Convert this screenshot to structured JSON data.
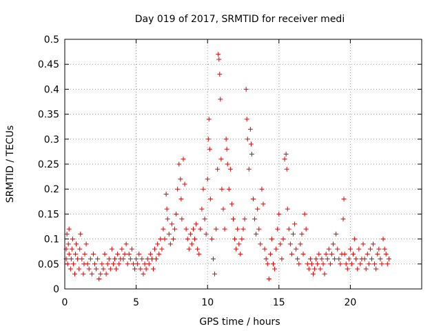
{
  "chart_data": {
    "type": "scatter",
    "title": "Day 019 of 2017, SRMTID for receiver medi",
    "xlabel": "GPS time / hours",
    "ylabel": "SRMTID / TECUs",
    "xlim": [
      0,
      25
    ],
    "ylim": [
      0,
      0.5
    ],
    "xticks": [
      0,
      5,
      10,
      15,
      20
    ],
    "xtick_labels": [
      "0",
      "5",
      "10",
      "15",
      "20"
    ],
    "yticks": [
      0,
      0.05,
      0.1,
      0.15,
      0.2,
      0.25,
      0.3,
      0.35,
      0.4,
      0.45,
      0.5
    ],
    "ytick_labels": [
      "0",
      "0.05",
      "0.1",
      "0.15",
      "0.2",
      "0.25",
      "0.3",
      "0.35",
      "0.4",
      "0.45",
      "0.5"
    ],
    "grid": true,
    "marker": "+",
    "color": "#e00000",
    "series": [
      {
        "name": "SRMTID",
        "points": [
          [
            0.1,
            0.06
          ],
          [
            0.1,
            0.08
          ],
          [
            0.15,
            0.11
          ],
          [
            0.2,
            0.05
          ],
          [
            0.25,
            0.09
          ],
          [
            0.3,
            0.07
          ],
          [
            0.3,
            0.12
          ],
          [
            0.4,
            0.04
          ],
          [
            0.45,
            0.06
          ],
          [
            0.5,
            0.08
          ],
          [
            0.55,
            0.1
          ],
          [
            0.6,
            0.05
          ],
          [
            0.7,
            0.03
          ],
          [
            0.75,
            0.07
          ],
          [
            0.8,
            0.09
          ],
          [
            0.9,
            0.06
          ],
          [
            1.0,
            0.04
          ],
          [
            1.05,
            0.08
          ],
          [
            1.1,
            0.11
          ],
          [
            1.2,
            0.06
          ],
          [
            1.3,
            0.03
          ],
          [
            1.35,
            0.05
          ],
          [
            1.4,
            0.07
          ],
          [
            1.5,
            0.09
          ],
          [
            1.6,
            0.05
          ],
          [
            1.7,
            0.04
          ],
          [
            1.8,
            0.06
          ],
          [
            1.9,
            0.03
          ],
          [
            2.0,
            0.07
          ],
          [
            2.1,
            0.05
          ],
          [
            2.2,
            0.04
          ],
          [
            2.3,
            0.06
          ],
          [
            2.4,
            0.02
          ],
          [
            2.5,
            0.03
          ],
          [
            2.6,
            0.05
          ],
          [
            2.7,
            0.04
          ],
          [
            2.8,
            0.07
          ],
          [
            2.9,
            0.03
          ],
          [
            3.0,
            0.05
          ],
          [
            3.1,
            0.06
          ],
          [
            3.2,
            0.04
          ],
          [
            3.3,
            0.08
          ],
          [
            3.4,
            0.05
          ],
          [
            3.5,
            0.06
          ],
          [
            3.6,
            0.04
          ],
          [
            3.7,
            0.07
          ],
          [
            3.8,
            0.05
          ],
          [
            3.9,
            0.06
          ],
          [
            4.0,
            0.08
          ],
          [
            4.1,
            0.06
          ],
          [
            4.2,
            0.07
          ],
          [
            4.3,
            0.09
          ],
          [
            4.4,
            0.05
          ],
          [
            4.5,
            0.07
          ],
          [
            4.6,
            0.06
          ],
          [
            4.7,
            0.08
          ],
          [
            4.8,
            0.05
          ],
          [
            4.9,
            0.04
          ],
          [
            5.0,
            0.06
          ],
          [
            5.1,
            0.05
          ],
          [
            5.2,
            0.07
          ],
          [
            5.3,
            0.04
          ],
          [
            5.4,
            0.06
          ],
          [
            5.5,
            0.03
          ],
          [
            5.6,
            0.05
          ],
          [
            5.7,
            0.04
          ],
          [
            5.8,
            0.06
          ],
          [
            5.9,
            0.05
          ],
          [
            6.0,
            0.07
          ],
          [
            6.1,
            0.06
          ],
          [
            6.2,
            0.04
          ],
          [
            6.3,
            0.08
          ],
          [
            6.4,
            0.06
          ],
          [
            6.5,
            0.09
          ],
          [
            6.6,
            0.07
          ],
          [
            6.7,
            0.1
          ],
          [
            6.8,
            0.08
          ],
          [
            6.9,
            0.12
          ],
          [
            7.0,
            0.1
          ],
          [
            7.1,
            0.19
          ],
          [
            7.15,
            0.16
          ],
          [
            7.2,
            0.14
          ],
          [
            7.3,
            0.11
          ],
          [
            7.4,
            0.09
          ],
          [
            7.5,
            0.13
          ],
          [
            7.6,
            0.1
          ],
          [
            7.7,
            0.12
          ],
          [
            7.8,
            0.15
          ],
          [
            7.9,
            0.2
          ],
          [
            8.0,
            0.25
          ],
          [
            8.1,
            0.22
          ],
          [
            8.15,
            0.18
          ],
          [
            8.2,
            0.14
          ],
          [
            8.3,
            0.26
          ],
          [
            8.4,
            0.21
          ],
          [
            8.5,
            0.12
          ],
          [
            8.6,
            0.1
          ],
          [
            8.7,
            0.08
          ],
          [
            8.8,
            0.11
          ],
          [
            8.9,
            0.09
          ],
          [
            9.0,
            0.12
          ],
          [
            9.1,
            0.1
          ],
          [
            9.2,
            0.13
          ],
          [
            9.3,
            0.08
          ],
          [
            9.4,
            0.07
          ],
          [
            9.5,
            0.12
          ],
          [
            9.6,
            0.16
          ],
          [
            9.7,
            0.2
          ],
          [
            9.8,
            0.14
          ],
          [
            9.9,
            0.11
          ],
          [
            10.0,
            0.22
          ],
          [
            10.05,
            0.3
          ],
          [
            10.1,
            0.34
          ],
          [
            10.15,
            0.28
          ],
          [
            10.2,
            0.18
          ],
          [
            10.3,
            0.1
          ],
          [
            10.4,
            0.06
          ],
          [
            10.5,
            0.03
          ],
          [
            10.6,
            0.12
          ],
          [
            10.7,
            0.24
          ],
          [
            10.75,
            0.47
          ],
          [
            10.8,
            0.46
          ],
          [
            10.85,
            0.43
          ],
          [
            10.9,
            0.38
          ],
          [
            10.95,
            0.26
          ],
          [
            11.0,
            0.2
          ],
          [
            11.1,
            0.16
          ],
          [
            11.2,
            0.12
          ],
          [
            11.3,
            0.3
          ],
          [
            11.35,
            0.28
          ],
          [
            11.4,
            0.25
          ],
          [
            11.5,
            0.2
          ],
          [
            11.6,
            0.24
          ],
          [
            11.7,
            0.17
          ],
          [
            11.8,
            0.14
          ],
          [
            11.9,
            0.1
          ],
          [
            12.0,
            0.08
          ],
          [
            12.1,
            0.12
          ],
          [
            12.2,
            0.09
          ],
          [
            12.3,
            0.07
          ],
          [
            12.4,
            0.1
          ],
          [
            12.5,
            0.12
          ],
          [
            12.6,
            0.14
          ],
          [
            12.7,
            0.4
          ],
          [
            12.75,
            0.34
          ],
          [
            12.8,
            0.3
          ],
          [
            12.9,
            0.24
          ],
          [
            13.0,
            0.32
          ],
          [
            13.05,
            0.29
          ],
          [
            13.1,
            0.27
          ],
          [
            13.2,
            0.18
          ],
          [
            13.3,
            0.14
          ],
          [
            13.4,
            0.11
          ],
          [
            13.5,
            0.16
          ],
          [
            13.6,
            0.12
          ],
          [
            13.7,
            0.09
          ],
          [
            13.8,
            0.2
          ],
          [
            13.9,
            0.17
          ],
          [
            14.0,
            0.08
          ],
          [
            14.1,
            0.06
          ],
          [
            14.2,
            0.05
          ],
          [
            14.3,
            0.02
          ],
          [
            14.4,
            0.07
          ],
          [
            14.5,
            0.1
          ],
          [
            14.6,
            0.05
          ],
          [
            14.7,
            0.04
          ],
          [
            14.8,
            0.08
          ],
          [
            14.9,
            0.12
          ],
          [
            15.0,
            0.15
          ],
          [
            15.1,
            0.09
          ],
          [
            15.2,
            0.06
          ],
          [
            15.3,
            0.1
          ],
          [
            15.4,
            0.26
          ],
          [
            15.5,
            0.27
          ],
          [
            15.55,
            0.24
          ],
          [
            15.6,
            0.16
          ],
          [
            15.7,
            0.12
          ],
          [
            15.8,
            0.09
          ],
          [
            15.9,
            0.07
          ],
          [
            16.0,
            0.11
          ],
          [
            16.1,
            0.13
          ],
          [
            16.2,
            0.08
          ],
          [
            16.3,
            0.06
          ],
          [
            16.4,
            0.05
          ],
          [
            16.5,
            0.09
          ],
          [
            16.6,
            0.11
          ],
          [
            16.7,
            0.07
          ],
          [
            16.8,
            0.15
          ],
          [
            16.9,
            0.12
          ],
          [
            17.0,
            0.05
          ],
          [
            17.1,
            0.04
          ],
          [
            17.2,
            0.06
          ],
          [
            17.3,
            0.05
          ],
          [
            17.4,
            0.03
          ],
          [
            17.5,
            0.04
          ],
          [
            17.6,
            0.06
          ],
          [
            17.7,
            0.05
          ],
          [
            17.8,
            0.07
          ],
          [
            17.9,
            0.04
          ],
          [
            18.0,
            0.06
          ],
          [
            18.1,
            0.05
          ],
          [
            18.2,
            0.03
          ],
          [
            18.3,
            0.07
          ],
          [
            18.4,
            0.06
          ],
          [
            18.5,
            0.08
          ],
          [
            18.6,
            0.05
          ],
          [
            18.7,
            0.07
          ],
          [
            18.8,
            0.09
          ],
          [
            18.9,
            0.06
          ],
          [
            19.0,
            0.11
          ],
          [
            19.1,
            0.08
          ],
          [
            19.2,
            0.06
          ],
          [
            19.3,
            0.05
          ],
          [
            19.4,
            0.07
          ],
          [
            19.5,
            0.14
          ],
          [
            19.55,
            0.18
          ],
          [
            19.6,
            0.07
          ],
          [
            19.7,
            0.05
          ],
          [
            19.8,
            0.04
          ],
          [
            19.9,
            0.06
          ],
          [
            20.0,
            0.08
          ],
          [
            20.1,
            0.05
          ],
          [
            20.2,
            0.07
          ],
          [
            20.3,
            0.1
          ],
          [
            20.4,
            0.06
          ],
          [
            20.5,
            0.04
          ],
          [
            20.6,
            0.08
          ],
          [
            20.7,
            0.05
          ],
          [
            20.8,
            0.06
          ],
          [
            20.9,
            0.09
          ],
          [
            21.0,
            0.06
          ],
          [
            21.1,
            0.04
          ],
          [
            21.2,
            0.07
          ],
          [
            21.3,
            0.05
          ],
          [
            21.4,
            0.08
          ],
          [
            21.5,
            0.06
          ],
          [
            21.6,
            0.09
          ],
          [
            21.7,
            0.05
          ],
          [
            21.8,
            0.04
          ],
          [
            21.9,
            0.07
          ],
          [
            22.0,
            0.08
          ],
          [
            22.1,
            0.06
          ],
          [
            22.2,
            0.05
          ],
          [
            22.3,
            0.1
          ],
          [
            22.4,
            0.08
          ],
          [
            22.5,
            0.07
          ],
          [
            22.6,
            0.05
          ],
          [
            22.7,
            0.06
          ]
        ]
      }
    ]
  }
}
